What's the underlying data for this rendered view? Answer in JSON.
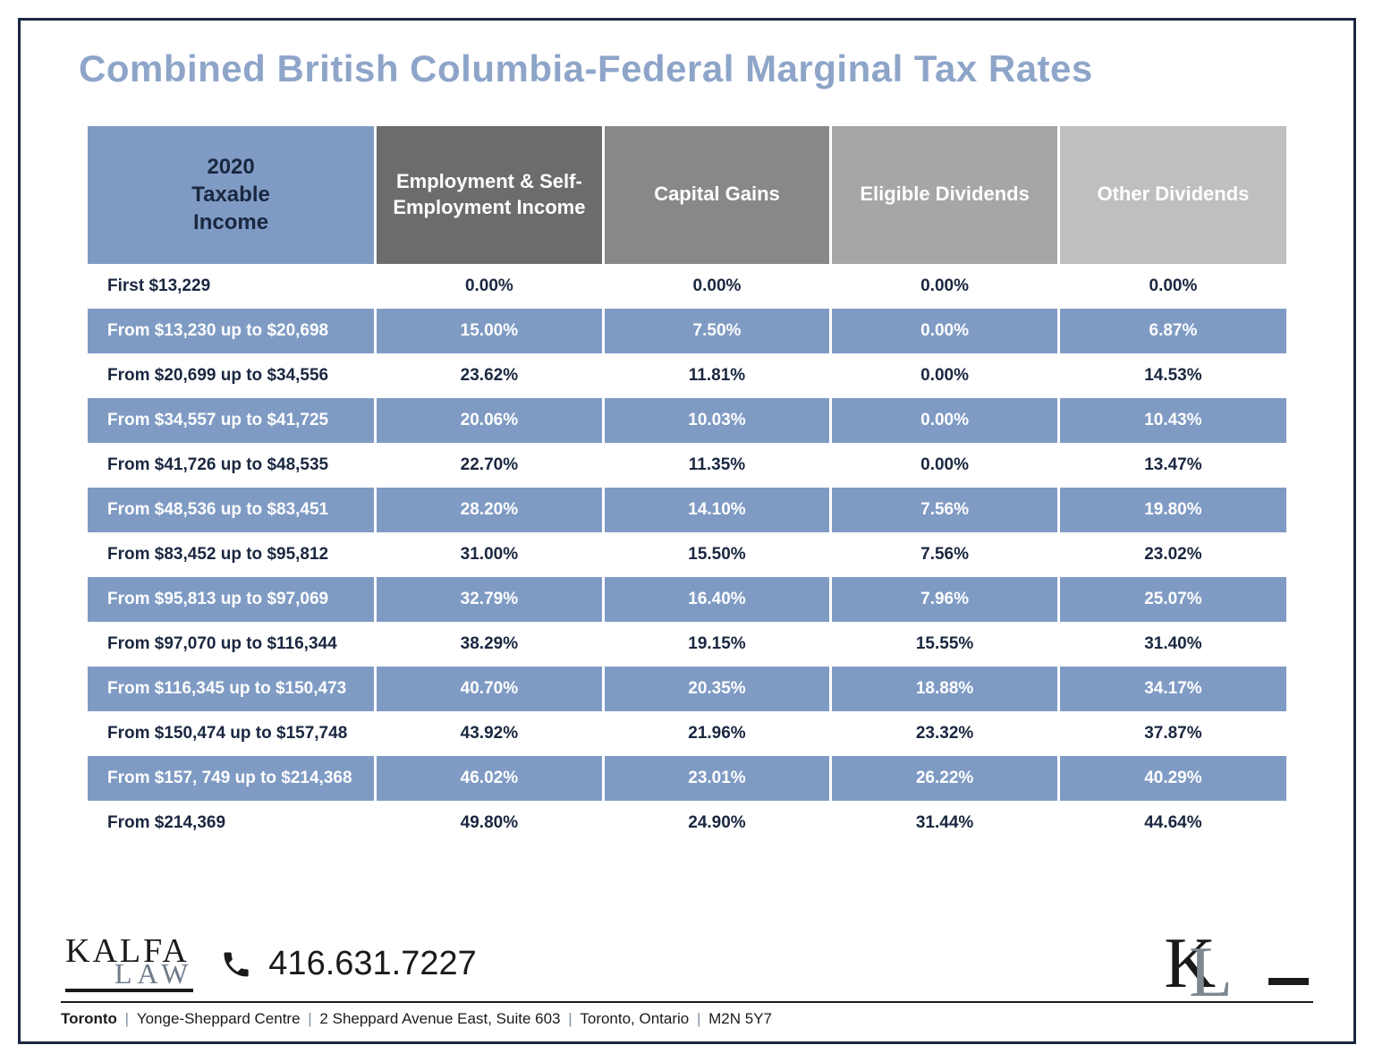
{
  "title": "Combined British Columbia-Federal Marginal Tax Rates",
  "title_color": "#8ea5c9",
  "table": {
    "header_cells": [
      {
        "label": "2020\nTaxable\nIncome",
        "bg": "#7f9bc4",
        "text_color": "#1a2740"
      },
      {
        "label": "Employment & Self-Employment Income",
        "bg": "#6c6c6c",
        "text_color": "#ffffff"
      },
      {
        "label": "Capital Gains",
        "bg": "#888888",
        "text_color": "#ffffff"
      },
      {
        "label": "Eligible Dividends",
        "bg": "#a6a6a6",
        "text_color": "#ffffff"
      },
      {
        "label": "Other Dividends",
        "bg": "#bfbfbf",
        "text_color": "#ffffff"
      }
    ],
    "col_widths": [
      "24%",
      "19%",
      "19%",
      "19%",
      "19%"
    ],
    "row_colors": {
      "odd_bg": "#ffffff",
      "odd_text": "#1a2740",
      "even_bg": "#7f9bc4",
      "even_text": "#ffffff"
    },
    "rows": [
      {
        "label": "First $13,229",
        "cells": [
          "0.00%",
          "0.00%",
          "0.00%",
          "0.00%"
        ]
      },
      {
        "label": "From $13,230 up to $20,698",
        "cells": [
          "15.00%",
          "7.50%",
          "0.00%",
          "6.87%"
        ]
      },
      {
        "label": "From $20,699 up to $34,556",
        "cells": [
          "23.62%",
          "11.81%",
          "0.00%",
          "14.53%"
        ]
      },
      {
        "label": "From $34,557 up to $41,725",
        "cells": [
          "20.06%",
          "10.03%",
          "0.00%",
          "10.43%"
        ]
      },
      {
        "label": "From $41,726 up to $48,535",
        "cells": [
          "22.70%",
          "11.35%",
          "0.00%",
          "13.47%"
        ]
      },
      {
        "label": "From $48,536 up to $83,451",
        "cells": [
          "28.20%",
          "14.10%",
          "7.56%",
          "19.80%"
        ]
      },
      {
        "label": "From $83,452 up to $95,812",
        "cells": [
          "31.00%",
          "15.50%",
          "7.56%",
          "23.02%"
        ]
      },
      {
        "label": "From $95,813 up to $97,069",
        "cells": [
          "32.79%",
          "16.40%",
          "7.96%",
          "25.07%"
        ]
      },
      {
        "label": "From $97,070 up to $116,344",
        "cells": [
          "38.29%",
          "19.15%",
          "15.55%",
          "31.40%"
        ]
      },
      {
        "label": "From $116,345 up to $150,473",
        "cells": [
          "40.70%",
          "20.35%",
          "18.88%",
          "34.17%"
        ]
      },
      {
        "label": "From $150,474 up to $157,748",
        "cells": [
          "43.92%",
          "21.96%",
          "23.32%",
          "37.87%"
        ]
      },
      {
        "label": "From $157, 749 up to $214,368",
        "cells": [
          "46.02%",
          "23.01%",
          "26.22%",
          "40.29%"
        ]
      },
      {
        "label": "From $214,369",
        "cells": [
          "49.80%",
          "24.90%",
          "31.44%",
          "44.64%"
        ]
      }
    ]
  },
  "footer": {
    "logo_top": "KALFA",
    "logo_bottom": "LAW",
    "phone": "416.631.7227",
    "mono_k": "K",
    "mono_l": "L",
    "address_city": "Toronto",
    "address_parts": [
      "Yonge-Sheppard Centre",
      "2 Sheppard Avenue East, Suite 603",
      "Toronto, Ontario",
      "M2N 5Y7"
    ]
  }
}
